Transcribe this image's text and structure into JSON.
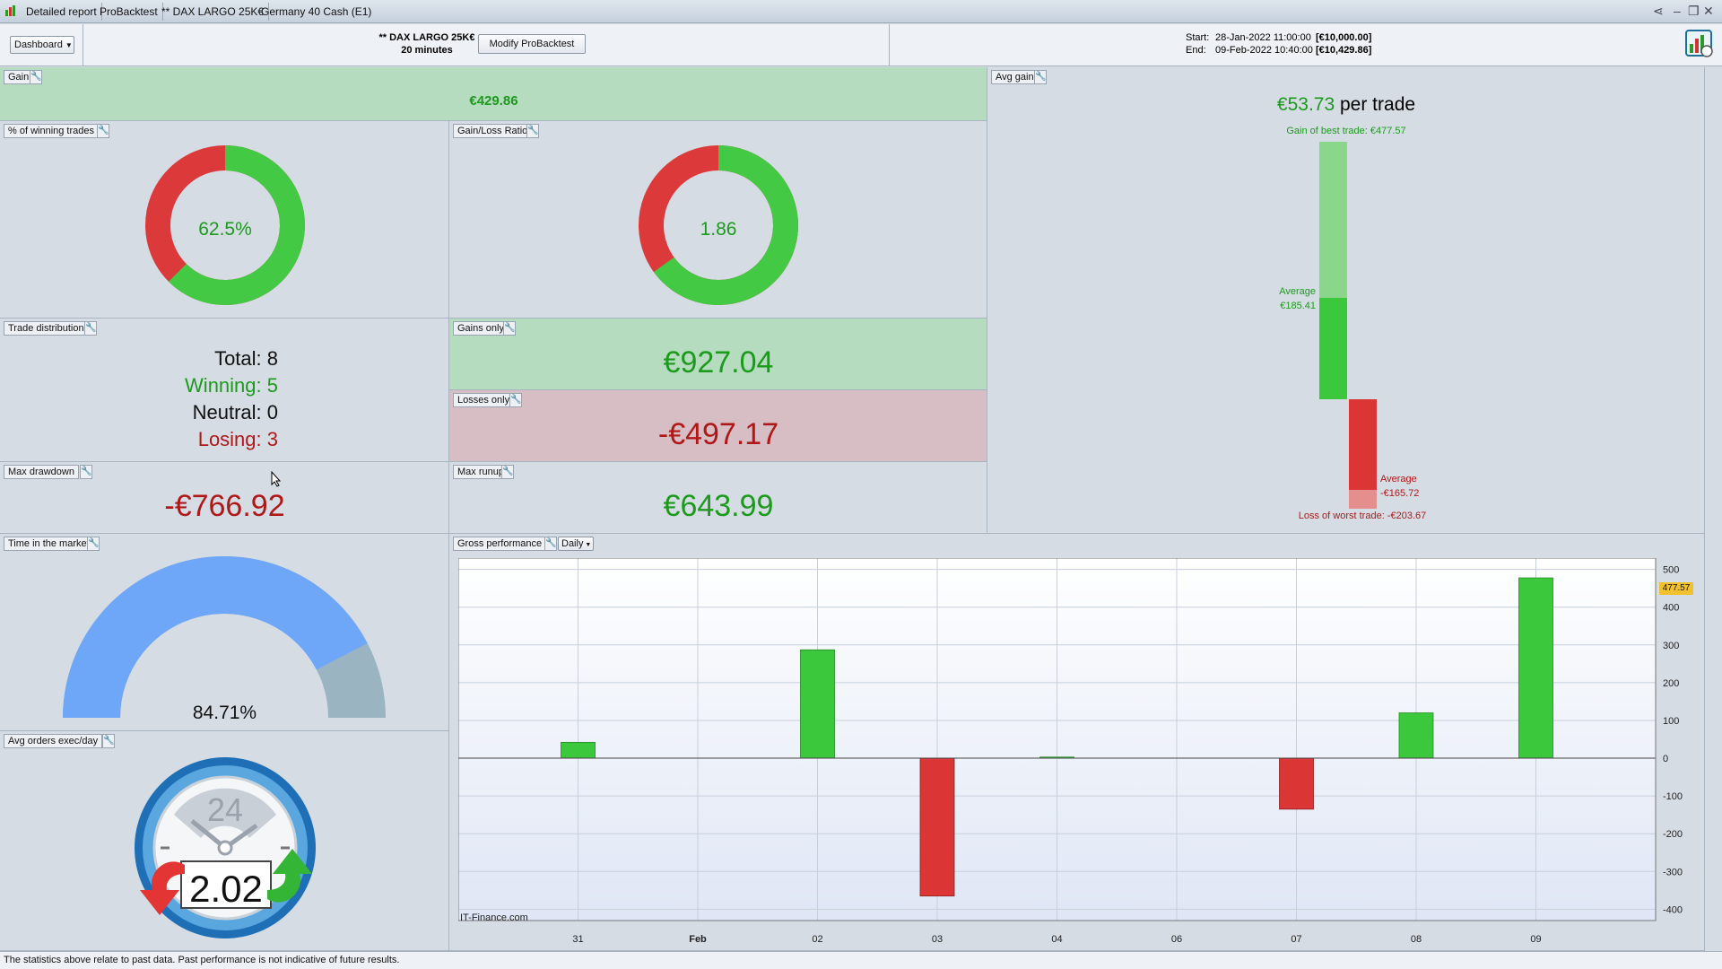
{
  "tabs": [
    "Detailed report",
    "ProBacktest",
    "** DAX LARGO 25K€",
    "Germany 40 Cash (E1)"
  ],
  "header": {
    "dashboard_label": "Dashboard",
    "strategy_name": "** DAX LARGO 25K€",
    "timeframe": "20 minutes",
    "modify_button": "Modify ProBacktest",
    "start_label": "Start:",
    "start_value": "28-Jan-2022 11:00:00",
    "start_capital": "[€10,000.00]",
    "end_label": "End:",
    "end_value": "09-Feb-2022 10:40:00",
    "end_capital": "[€10,429.86]"
  },
  "gain": {
    "label": "Gain",
    "value": "€429.86"
  },
  "winning_pct": {
    "label": "% of winning trades",
    "value": "62.5%",
    "fraction": 0.625
  },
  "gain_loss_ratio": {
    "label": "Gain/Loss Ratio",
    "value": "1.86",
    "fraction": 0.65
  },
  "avg_gain": {
    "label": "Avg gain",
    "value": "€53.73",
    "unit": "per trade",
    "best_trade": "Gain of best trade: €477.57",
    "avg_gain_label": "Average",
    "avg_gain_value": "€185.41",
    "avg_loss_label": "Average",
    "avg_loss_value": "-€165.72",
    "worst_trade": "Loss of worst trade: -€203.67"
  },
  "trade_distribution": {
    "label": "Trade distribution",
    "total": "Total: 8",
    "winning": "Winning: 5",
    "neutral": "Neutral: 0",
    "losing": "Losing: 3"
  },
  "gains_only": {
    "label": "Gains only",
    "value": "€927.04"
  },
  "losses_only": {
    "label": "Losses only",
    "value": "-€497.17"
  },
  "max_drawdown": {
    "label": "Max drawdown",
    "value": "-€766.92"
  },
  "max_runup": {
    "label": "Max runup",
    "value": "€643.99"
  },
  "time_in_market": {
    "label": "Time in the market",
    "value": "84.71%",
    "fraction": 0.8471
  },
  "avg_orders": {
    "label": "Avg orders exec/day",
    "value": "2.02",
    "dial": "24"
  },
  "gross_performance": {
    "label": "Gross performance",
    "period": "Daily",
    "watermark": "IT-Finance.com",
    "last_value_badge": "477.57"
  },
  "colors": {
    "gain": "#3cc83c",
    "loss": "#dc3535",
    "donut_green": "#43c943",
    "donut_red": "#dc3a3a",
    "gauge": "#6ea7f8"
  },
  "chart_data": {
    "type": "bar",
    "title": "Gross performance",
    "categories": [
      "31",
      "Feb",
      "02",
      "03",
      "04",
      "06",
      "07",
      "08",
      "09"
    ],
    "values": [
      42,
      0,
      287,
      -365,
      3,
      0,
      -135,
      120,
      477.57
    ],
    "ylim": [
      -430,
      530
    ],
    "yticks": [
      500,
      400,
      300,
      200,
      100,
      0,
      -100,
      -200,
      -300,
      -400
    ],
    "grid": true
  },
  "footer": "The statistics above relate to past data. Past performance is not indicative of future results."
}
